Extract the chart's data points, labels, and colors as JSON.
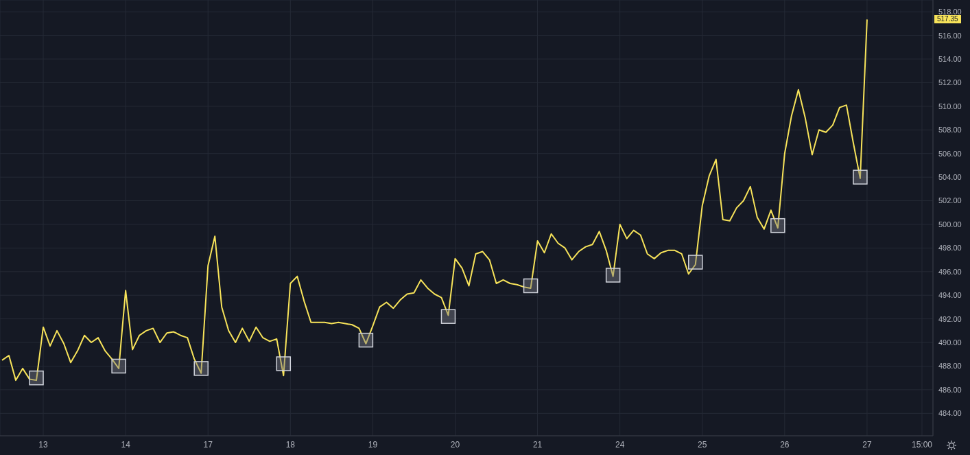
{
  "chart_data": {
    "type": "line",
    "categories": [
      null,
      null,
      null,
      null,
      null,
      null,
      "13",
      null,
      null,
      null,
      null,
      null,
      null,
      null,
      null,
      null,
      null,
      null,
      "14",
      null,
      null,
      null,
      null,
      null,
      null,
      null,
      null,
      null,
      null,
      null,
      "17",
      null,
      null,
      null,
      null,
      null,
      null,
      null,
      null,
      null,
      null,
      null,
      "18",
      null,
      null,
      null,
      null,
      null,
      null,
      null,
      null,
      null,
      null,
      null,
      "19",
      null,
      null,
      null,
      null,
      null,
      null,
      null,
      null,
      null,
      null,
      null,
      "20",
      null,
      null,
      null,
      null,
      null,
      null,
      null,
      null,
      null,
      null,
      null,
      "21",
      null,
      null,
      null,
      null,
      null,
      null,
      null,
      null,
      null,
      null,
      null,
      "24",
      null,
      null,
      null,
      null,
      null,
      null,
      null,
      null,
      null,
      null,
      null,
      "25",
      null,
      null,
      null,
      null,
      null,
      null,
      null,
      null,
      null,
      null,
      null,
      "26",
      null,
      null,
      null,
      null,
      null,
      null,
      null,
      null,
      null,
      null,
      null,
      "27",
      null,
      null,
      null,
      null,
      null,
      null,
      null,
      "15:00",
      null
    ],
    "series": [
      {
        "color": "#f7e35a",
        "values": [
          488.5,
          488.9,
          486.8,
          487.8,
          486.9,
          486.8,
          491.3,
          489.7,
          491.0,
          489.9,
          488.3,
          489.3,
          490.6,
          490.0,
          490.4,
          489.3,
          488.6,
          487.8,
          494.4,
          489.4,
          490.6,
          491.0,
          491.2,
          490.0,
          490.8,
          490.9,
          490.6,
          490.4,
          488.6,
          487.4,
          496.5,
          499.0,
          493.0,
          491.0,
          490.0,
          491.2,
          490.1,
          491.3,
          490.4,
          490.1,
          490.3,
          487.2,
          495.0,
          495.6,
          493.5,
          491.7,
          491.7,
          491.7,
          491.6,
          491.7,
          491.6,
          491.5,
          491.2,
          489.9,
          491.4,
          493.0,
          493.4,
          492.9,
          493.6,
          494.1,
          494.2,
          495.3,
          494.6,
          494.1,
          493.8,
          492.3,
          497.1,
          496.3,
          494.8,
          497.5,
          497.7,
          497.0,
          495.0,
          495.3,
          495.0,
          494.9,
          494.7,
          494.6,
          498.6,
          497.6,
          499.2,
          498.4,
          498.0,
          497.0,
          497.7,
          498.1,
          498.3,
          499.4,
          497.8,
          495.6,
          500.0,
          498.8,
          499.5,
          499.1,
          497.5,
          497.1,
          497.6,
          497.8,
          497.8,
          497.5,
          495.8,
          496.6,
          501.6,
          504.1,
          505.5,
          500.4,
          500.3,
          501.4,
          502.0,
          503.2,
          500.6,
          499.6,
          501.2,
          499.7,
          506.0,
          509.2,
          511.4,
          509.0,
          505.9,
          508.0,
          507.8,
          508.4,
          509.9,
          510.1,
          506.9,
          503.9,
          517.35,
          null,
          null,
          null,
          null,
          null,
          null,
          null,
          null,
          null
        ]
      },
      {
        "type": "scatter",
        "marker": "square",
        "color": "#d1d4dc",
        "values": [
          null,
          null,
          null,
          null,
          null,
          487.0,
          null,
          null,
          null,
          null,
          null,
          null,
          null,
          null,
          null,
          null,
          null,
          488.0,
          null,
          null,
          null,
          null,
          null,
          null,
          null,
          null,
          null,
          null,
          null,
          487.8,
          null,
          null,
          null,
          null,
          null,
          null,
          null,
          null,
          null,
          null,
          null,
          488.2,
          null,
          null,
          null,
          null,
          null,
          null,
          null,
          null,
          null,
          null,
          null,
          490.2,
          null,
          null,
          null,
          null,
          null,
          null,
          null,
          null,
          null,
          null,
          null,
          492.2,
          null,
          null,
          null,
          null,
          null,
          null,
          null,
          null,
          null,
          null,
          null,
          494.8,
          null,
          null,
          null,
          null,
          null,
          null,
          null,
          null,
          null,
          null,
          null,
          495.7,
          null,
          null,
          null,
          null,
          null,
          null,
          null,
          null,
          null,
          null,
          null,
          496.8,
          null,
          null,
          null,
          null,
          null,
          null,
          null,
          null,
          null,
          null,
          null,
          499.9,
          null,
          null,
          null,
          null,
          null,
          null,
          null,
          null,
          null,
          null,
          null,
          504.0,
          null,
          null,
          null,
          null,
          null,
          null,
          null,
          null,
          null,
          null
        ]
      }
    ],
    "ylim": [
      482.1,
      519
    ],
    "yticks": [
      {
        "value": 484,
        "label": "484.00"
      },
      {
        "value": 486,
        "label": "486.00"
      },
      {
        "value": 488,
        "label": "488.00"
      },
      {
        "value": 490,
        "label": "490.00"
      },
      {
        "value": 492,
        "label": "492.00"
      },
      {
        "value": 494,
        "label": "494.00"
      },
      {
        "value": 496,
        "label": "496.00"
      },
      {
        "value": 498,
        "label": "498.00"
      },
      {
        "value": 500,
        "label": "500.00"
      },
      {
        "value": 502,
        "label": "502.00"
      },
      {
        "value": 504,
        "label": "504.00"
      },
      {
        "value": 506,
        "label": "506.00"
      },
      {
        "value": 508,
        "label": "508.00"
      },
      {
        "value": 510,
        "label": "510.00"
      },
      {
        "value": 512,
        "label": "512.00"
      },
      {
        "value": 514,
        "label": "514.00"
      },
      {
        "value": 516,
        "label": "516.00"
      },
      {
        "value": 518,
        "label": "518.00"
      }
    ],
    "annotations": [
      {
        "text": "517.35",
        "y": 517.35
      }
    ],
    "grid": true,
    "marker": "none",
    "line_style": "solid"
  }
}
